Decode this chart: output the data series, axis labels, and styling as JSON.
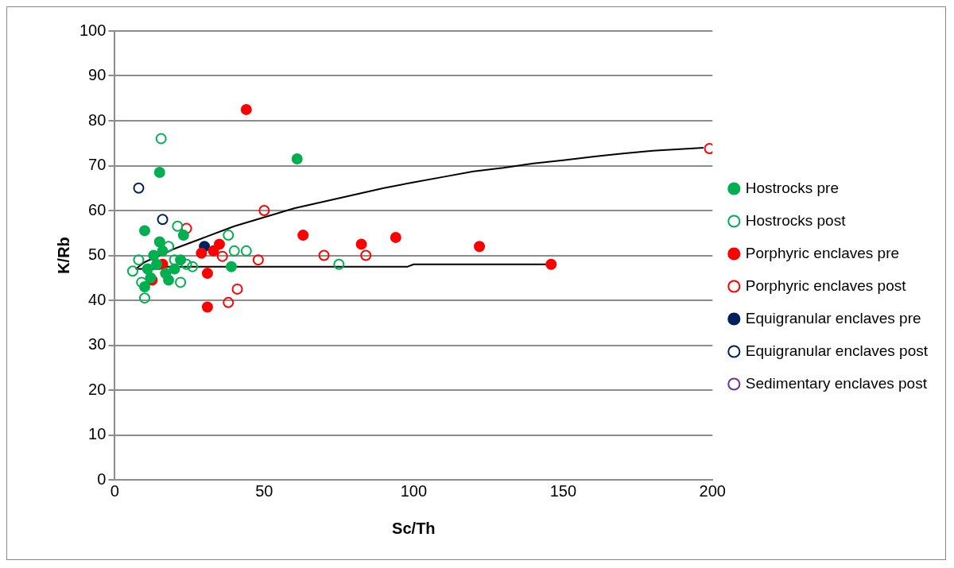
{
  "chart_data": {
    "type": "scatter",
    "xlabel": "Sc/Th",
    "ylabel": "K/Rb",
    "xlim": [
      0,
      200
    ],
    "xticks": [
      0,
      50,
      100,
      150,
      200
    ],
    "ylim": [
      0,
      100
    ],
    "yticks": [
      0,
      10,
      20,
      30,
      40,
      50,
      60,
      70,
      80,
      90,
      100
    ],
    "grid": "y",
    "legend": "right",
    "marker": "circle",
    "series": [
      {
        "name": "Hostrocks pre",
        "color": "#00b050",
        "x": [
          10,
          15,
          61,
          15,
          39,
          10,
          12,
          14,
          17,
          20,
          22,
          13,
          18,
          11,
          16,
          23
        ],
        "values": [
          55.5,
          68.5,
          71.5,
          53,
          47.5,
          43,
          45,
          48,
          46,
          47,
          49,
          50,
          44.5,
          47,
          51,
          54.5
        ]
      },
      {
        "name": "Hostrocks post",
        "color": "#00b050",
        "marker": "circle-open",
        "x": [
          15.5,
          21,
          10,
          6,
          8,
          38,
          40,
          44,
          75,
          22,
          26,
          20,
          18,
          null,
          24,
          9
        ],
        "values": [
          76,
          56.5,
          40.5,
          46.5,
          49,
          54.5,
          51,
          51,
          48,
          44,
          47.5,
          49,
          52,
          null,
          48,
          44
        ]
      },
      {
        "name": "Porphyric enclaves pre",
        "color": "#ff0000",
        "x": [
          44,
          63,
          94,
          82.5,
          122,
          146,
          35,
          31,
          31,
          12.5,
          16,
          29,
          33
        ],
        "values": [
          82.5,
          54.5,
          54,
          52.5,
          52,
          48,
          52.5,
          46,
          38.5,
          44.5,
          48,
          50.5,
          51
        ]
      },
      {
        "name": "Porphyric enclaves post",
        "color": "#ff0000",
        "marker": "circle-open",
        "x": [
          199,
          50,
          24,
          48,
          70,
          84,
          41,
          38,
          36,
          null
        ],
        "values": [
          73.8,
          60,
          56,
          49,
          50,
          50,
          42.5,
          39.5,
          49.8,
          null
        ]
      },
      {
        "name": "Equigranular enclaves pre",
        "color": "#002060",
        "x": [
          30
        ],
        "values": [
          52
        ]
      },
      {
        "name": "Equigranular enclaves post",
        "color": "#002060",
        "marker": "circle-open",
        "x": [
          8,
          16
        ],
        "values": [
          65,
          58
        ]
      },
      {
        "name": "Sedimentary enclaves post",
        "color": "#7030a0",
        "marker": "circle-open"
      },
      {
        "type": "line",
        "color": "#000000",
        "marker": "none",
        "x": [
          7,
          10,
          20,
          30,
          40,
          50,
          60,
          70,
          80,
          90,
          100,
          110,
          120,
          130,
          140,
          150,
          160,
          170,
          180,
          197
        ],
        "values": [
          47,
          48.5,
          51.5,
          54,
          56.5,
          58.5,
          60.5,
          62,
          63.5,
          65,
          66.3,
          67.5,
          68.7,
          69.5,
          70.5,
          71.2,
          72,
          72.7,
          73.3,
          74
        ]
      },
      {
        "type": "line",
        "color": "#000000",
        "marker": "none",
        "x": [
          7,
          15,
          17,
          50,
          98,
          100,
          145
        ],
        "values": [
          47,
          47,
          47.5,
          47.5,
          47.5,
          48,
          48
        ]
      }
    ]
  }
}
